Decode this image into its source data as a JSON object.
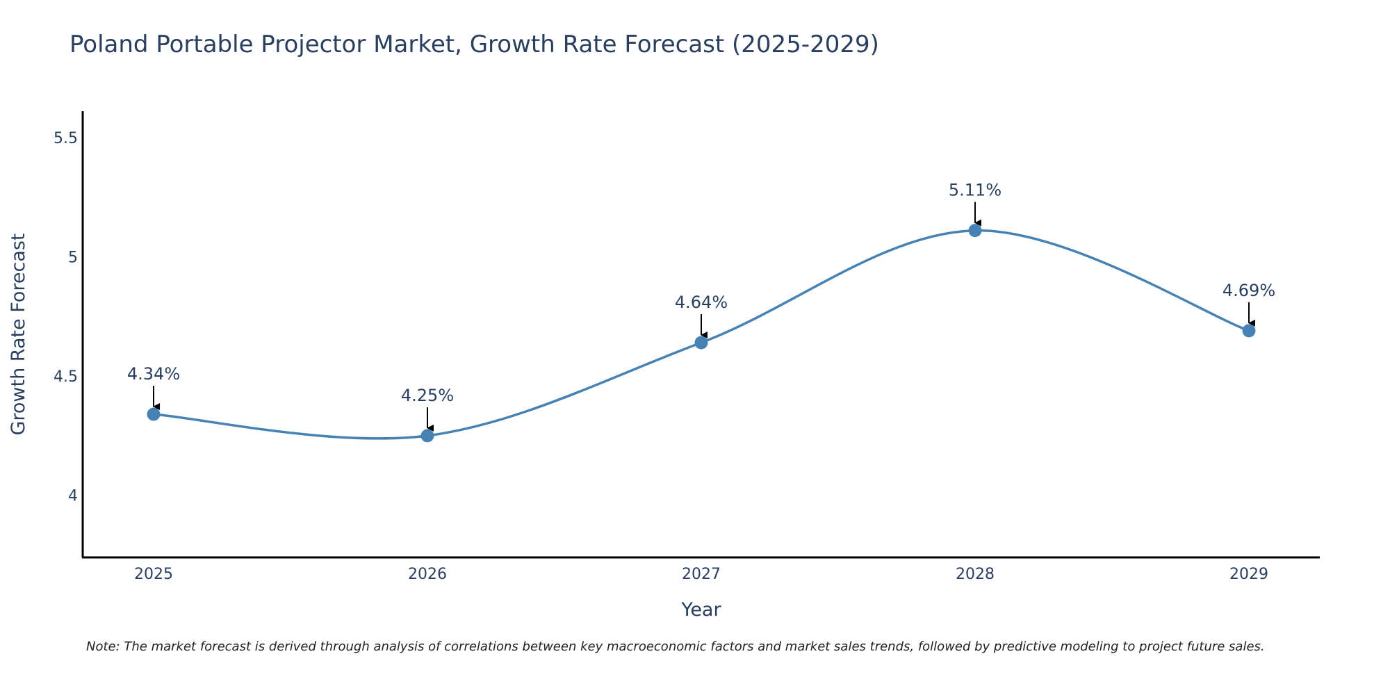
{
  "chart_data": {
    "type": "line",
    "title": "Poland Portable Projector Market, Growth Rate Forecast (2025-2029)",
    "xlabel": "Year",
    "ylabel": "Growth Rate Forecast",
    "x": [
      "2025",
      "2026",
      "2027",
      "2028",
      "2029"
    ],
    "series": [
      {
        "name": "Growth Rate Forecast",
        "values": [
          4.34,
          4.25,
          4.64,
          5.11,
          4.69
        ],
        "labels": [
          "4.34%",
          "4.25%",
          "4.64%",
          "5.11%",
          "4.69%"
        ],
        "color": "#4682b4"
      }
    ],
    "ylim": [
      3.74,
      5.61
    ],
    "yticks": [
      4,
      4.5,
      5,
      5.5
    ],
    "ytick_labels": [
      "4",
      "4.5",
      "5",
      "5.5"
    ],
    "grid": false,
    "line_shape": "spline"
  },
  "footnote": "Note: The market forecast is derived through analysis of correlations between key macroeconomic factors and market sales trends, followed by predictive modeling to project future sales."
}
